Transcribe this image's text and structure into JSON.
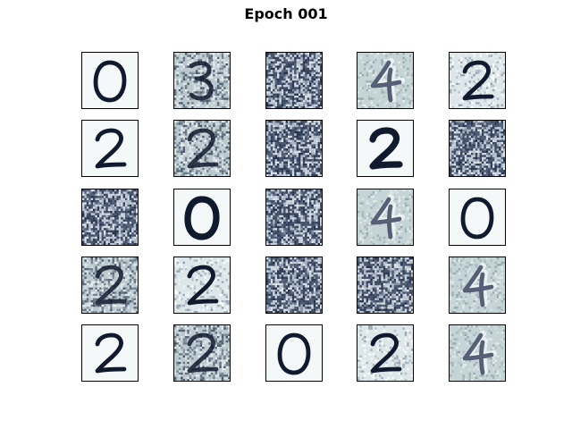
{
  "title": "Epoch 001",
  "colors": {
    "ink": "#101a2e",
    "paper": "#f4f8f9",
    "light_grey_bg": "#c5d4d6",
    "noise_dark": "#1d2a45",
    "noise_light": "#e8eef2"
  },
  "tiles": [
    {
      "digit": "0",
      "style": "clean"
    },
    {
      "digit": "3",
      "style": "noisy"
    },
    {
      "digit": "",
      "style": "noise"
    },
    {
      "digit": "4",
      "style": "ghost"
    },
    {
      "digit": "2",
      "style": "speckled"
    },
    {
      "digit": "2",
      "style": "clean"
    },
    {
      "digit": "2",
      "style": "noisy"
    },
    {
      "digit": "",
      "style": "noise"
    },
    {
      "digit": "2",
      "style": "clean-bold"
    },
    {
      "digit": "",
      "style": "noise"
    },
    {
      "digit": "",
      "style": "noise"
    },
    {
      "digit": "0",
      "style": "clean-bold"
    },
    {
      "digit": "",
      "style": "noise"
    },
    {
      "digit": "4",
      "style": "ghost"
    },
    {
      "digit": "0",
      "style": "clean"
    },
    {
      "digit": "2",
      "style": "noisy"
    },
    {
      "digit": "2",
      "style": "speckled"
    },
    {
      "digit": "",
      "style": "noise"
    },
    {
      "digit": "",
      "style": "noise"
    },
    {
      "digit": "4",
      "style": "ghost"
    },
    {
      "digit": "2",
      "style": "clean"
    },
    {
      "digit": "2",
      "style": "noisy"
    },
    {
      "digit": "0",
      "style": "clean"
    },
    {
      "digit": "2",
      "style": "speckled"
    },
    {
      "digit": "4",
      "style": "ghost"
    }
  ]
}
